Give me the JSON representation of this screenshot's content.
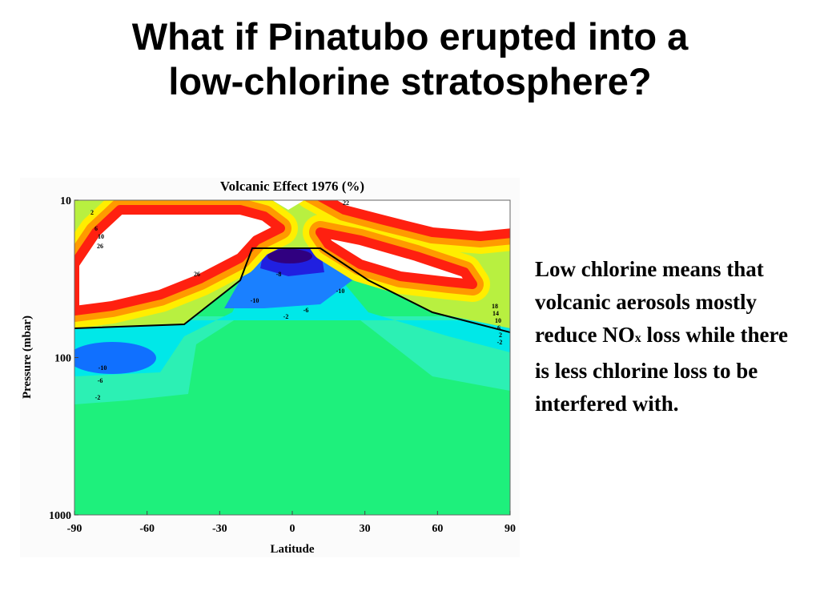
{
  "slide": {
    "title_lines": [
      "What if Pinatubo erupted into a",
      "low-chlorine stratosphere?"
    ],
    "body": {
      "before_subscript": "Low chlorine means that volcanic aerosols mostly reduce NO",
      "subscript": "x",
      "after_subscript": " loss while there is less chlorine loss to be interfered with."
    }
  },
  "figure": {
    "title": "Volcanic Effect 1976 (%)",
    "xlabel": "Latitude",
    "ylabel": "Pressure (mbar)",
    "xticks": [
      -90,
      -60,
      -30,
      0,
      30,
      60,
      90
    ],
    "yticks": [
      10,
      100,
      1000
    ],
    "contour_labels": [
      "2",
      "6",
      "10",
      "26",
      "22",
      "-8",
      "-10",
      "-6",
      "-2",
      "-10",
      "-6",
      "-2",
      "18",
      "14",
      "10",
      "6",
      "2",
      "-2",
      "26",
      "-10"
    ]
  }
}
